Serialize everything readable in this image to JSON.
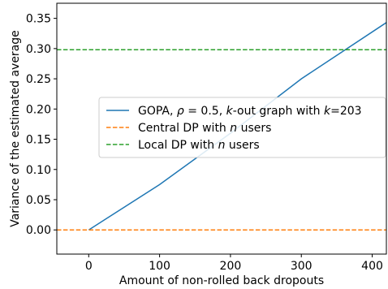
{
  "chart_data": {
    "type": "line",
    "xlabel": "Amount of non-rolled back dropouts",
    "ylabel": "Variance of the estimated average",
    "xlim": [
      -45,
      420
    ],
    "ylim": [
      -0.04,
      0.375
    ],
    "xticks": [
      0,
      100,
      200,
      300,
      400
    ],
    "yticks": [
      0.0,
      0.05,
      0.1,
      0.15,
      0.2,
      0.25,
      0.3,
      0.35
    ],
    "xtick_labels": [
      "0",
      "100",
      "200",
      "300",
      "400"
    ],
    "ytick_labels": [
      "0.00",
      "0.05",
      "0.10",
      "0.15",
      "0.20",
      "0.25",
      "0.30",
      "0.35"
    ],
    "grid": false,
    "legend_location": "center-right",
    "series": [
      {
        "name_parts": [
          "GOPA, ",
          "ρ",
          " = 0.5, ",
          "k",
          "-out graph with ",
          "k",
          "=203"
        ],
        "color": "#1f77b4",
        "style": "solid",
        "x": [
          0,
          100,
          200,
          300,
          420
        ],
        "y": [
          0.0,
          0.075,
          0.16,
          0.25,
          0.343
        ]
      },
      {
        "name_parts": [
          "Central DP with ",
          "n",
          " users"
        ],
        "color": "#ff7f0e",
        "style": "dashed",
        "x": [
          -45,
          420
        ],
        "y": [
          0.0,
          0.0
        ]
      },
      {
        "name_parts": [
          "Local DP with ",
          "n",
          " users"
        ],
        "color": "#2ca02c",
        "style": "dashed",
        "x": [
          -45,
          420
        ],
        "y": [
          0.298,
          0.298
        ]
      }
    ]
  }
}
